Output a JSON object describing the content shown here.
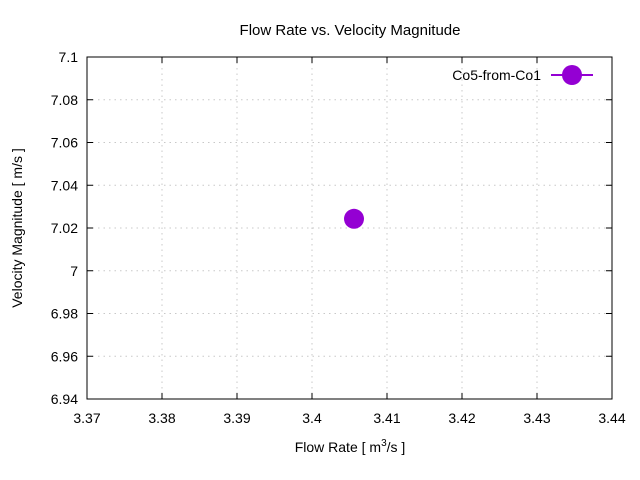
{
  "chart_data": {
    "type": "scatter",
    "title": "Flow Rate vs. Velocity Magnitude",
    "xlabel": {
      "prefix": "Flow Rate [ m",
      "sup": "3",
      "suffix": "/s ]"
    },
    "ylabel": "Velocity Magnitude [ m/s ]",
    "xlim": [
      3.37,
      3.44
    ],
    "ylim": [
      6.94,
      7.1
    ],
    "xticks": [
      "3.37",
      "3.38",
      "3.39",
      "3.4",
      "3.41",
      "3.42",
      "3.43",
      "3.44"
    ],
    "yticks": [
      "6.94",
      "6.96",
      "6.98",
      "7",
      "7.02",
      "7.04",
      "7.06",
      "7.08",
      "7.1"
    ],
    "grid": true,
    "legend_position": "top-right",
    "series": [
      {
        "name": "Co5-from-Co1",
        "color": "#9400d3",
        "marker": "filled-circle",
        "points": [
          {
            "x": 3.4056,
            "y": 7.0243
          }
        ]
      }
    ]
  }
}
